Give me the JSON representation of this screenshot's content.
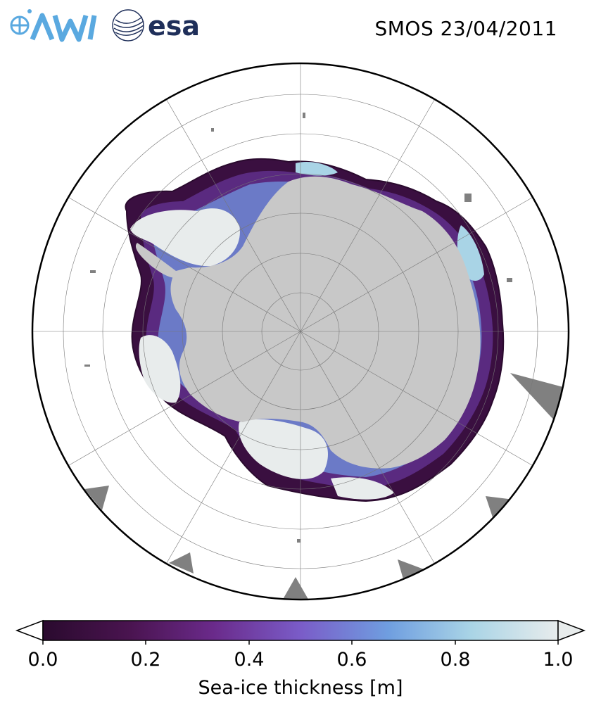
{
  "title": "SMOS 23/04/2011",
  "logos": {
    "awi": "AWI",
    "esa": "esa"
  },
  "colorbar": {
    "label": "Sea-ice thickness [m]",
    "ticks": [
      "0.0",
      "0.2",
      "0.4",
      "0.6",
      "0.8",
      "1.0"
    ],
    "min": 0.0,
    "max": 1.0,
    "extend": "both",
    "colors": [
      "#2a0a2e",
      "#4a1450",
      "#6a2a8a",
      "#7a5cc8",
      "#6f9ee0",
      "#a9d4e6",
      "#e8ecec"
    ]
  },
  "map": {
    "projection": "south-polar-stereographic",
    "gridlines": true,
    "land_color": "#c8c8c8",
    "missing_color": "#808080",
    "ocean_color": "#ffffff"
  }
}
